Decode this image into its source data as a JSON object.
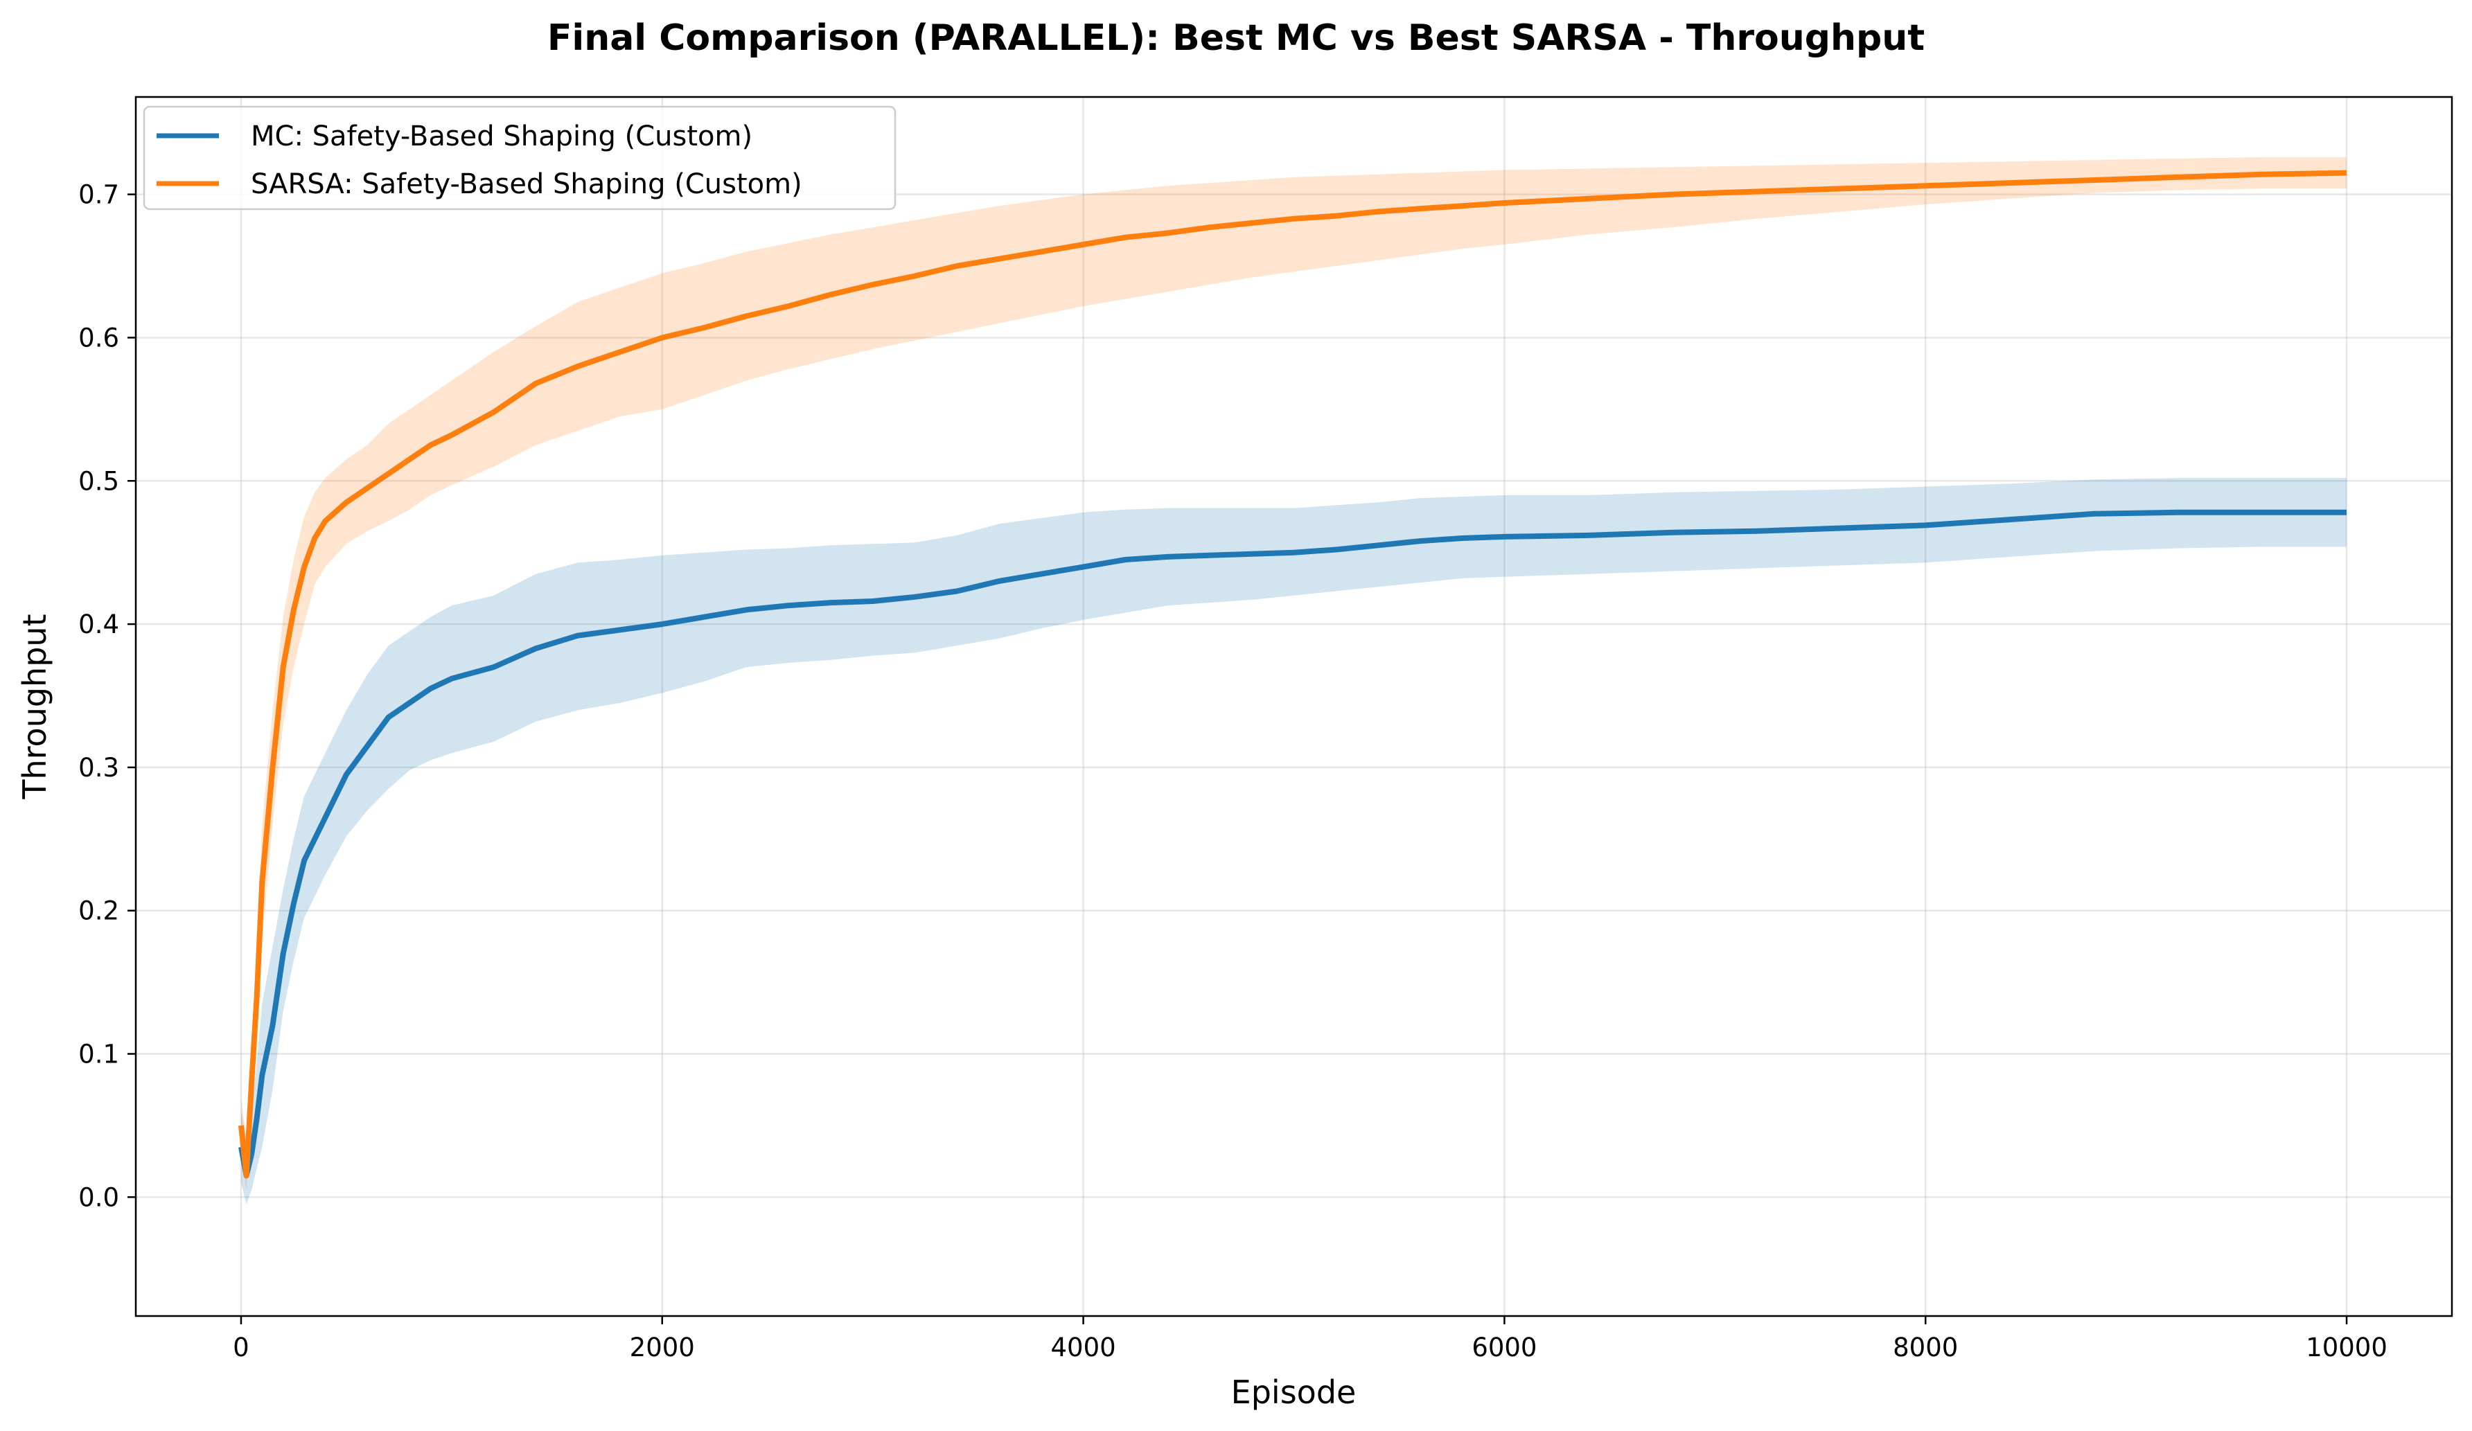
{
  "chart_data": {
    "type": "line",
    "title": "Final Comparison (PARALLEL): Best MC vs Best SARSA - Throughput",
    "xlabel": "Episode",
    "ylabel": "Throughput",
    "xlim": [
      -500,
      10500
    ],
    "ylim": [
      -0.083,
      0.768
    ],
    "x_ticks": [
      0,
      2000,
      4000,
      6000,
      8000,
      10000
    ],
    "y_ticks": [
      0.0,
      0.1,
      0.2,
      0.3,
      0.4,
      0.5,
      0.6,
      0.7
    ],
    "x_tick_labels": [
      "0",
      "2000",
      "4000",
      "6000",
      "8000",
      "10000"
    ],
    "y_tick_labels": [
      "0.0",
      "0.1",
      "0.2",
      "0.3",
      "0.4",
      "0.5",
      "0.6",
      "0.7"
    ],
    "grid": true,
    "legend_position": "top-left",
    "series": [
      {
        "name": "MC: Safety-Based Shaping (Custom)",
        "color": "#1f77b4",
        "x": [
          0,
          25,
          50,
          75,
          100,
          150,
          200,
          250,
          300,
          400,
          500,
          600,
          700,
          800,
          900,
          1000,
          1200,
          1400,
          1600,
          1800,
          2000,
          2200,
          2400,
          2600,
          2800,
          3000,
          3200,
          3400,
          3600,
          3800,
          4000,
          4200,
          4400,
          4600,
          4800,
          5000,
          5200,
          5400,
          5600,
          5800,
          6000,
          6400,
          6800,
          7200,
          7600,
          8000,
          8400,
          8800,
          9200,
          9600,
          10000
        ],
        "values": [
          0.035,
          0.015,
          0.03,
          0.055,
          0.085,
          0.12,
          0.17,
          0.205,
          0.235,
          0.265,
          0.295,
          0.315,
          0.335,
          0.345,
          0.355,
          0.362,
          0.37,
          0.383,
          0.392,
          0.396,
          0.4,
          0.405,
          0.41,
          0.413,
          0.415,
          0.416,
          0.419,
          0.423,
          0.43,
          0.435,
          0.44,
          0.445,
          0.447,
          0.448,
          0.449,
          0.45,
          0.452,
          0.455,
          0.458,
          0.46,
          0.461,
          0.462,
          0.464,
          0.465,
          0.467,
          0.469,
          0.473,
          0.477,
          0.478,
          0.478,
          0.478
        ],
        "lower": [
          0.01,
          -0.005,
          0.005,
          0.02,
          0.035,
          0.075,
          0.13,
          0.165,
          0.195,
          0.225,
          0.252,
          0.27,
          0.285,
          0.298,
          0.305,
          0.31,
          0.318,
          0.332,
          0.34,
          0.345,
          0.352,
          0.36,
          0.37,
          0.373,
          0.375,
          0.378,
          0.38,
          0.385,
          0.39,
          0.397,
          0.403,
          0.408,
          0.413,
          0.415,
          0.417,
          0.42,
          0.423,
          0.426,
          0.429,
          0.432,
          0.433,
          0.435,
          0.437,
          0.439,
          0.441,
          0.443,
          0.447,
          0.451,
          0.453,
          0.454,
          0.454
        ],
        "upper": [
          0.06,
          0.04,
          0.06,
          0.095,
          0.135,
          0.175,
          0.215,
          0.25,
          0.28,
          0.31,
          0.34,
          0.365,
          0.385,
          0.395,
          0.405,
          0.413,
          0.42,
          0.435,
          0.443,
          0.445,
          0.448,
          0.45,
          0.452,
          0.453,
          0.455,
          0.456,
          0.457,
          0.462,
          0.47,
          0.474,
          0.478,
          0.48,
          0.481,
          0.481,
          0.481,
          0.481,
          0.483,
          0.485,
          0.488,
          0.489,
          0.49,
          0.49,
          0.492,
          0.493,
          0.494,
          0.496,
          0.498,
          0.501,
          0.502,
          0.502,
          0.502
        ]
      },
      {
        "name": "SARSA: Safety-Based Shaping (Custom)",
        "color": "#ff7f0e",
        "x": [
          0,
          25,
          50,
          75,
          100,
          150,
          200,
          250,
          300,
          350,
          400,
          500,
          600,
          700,
          800,
          900,
          1000,
          1200,
          1400,
          1600,
          1800,
          2000,
          2200,
          2400,
          2600,
          2800,
          3000,
          3200,
          3400,
          3600,
          3800,
          4000,
          4200,
          4400,
          4600,
          4800,
          5000,
          5200,
          5400,
          5600,
          5800,
          6000,
          6400,
          6800,
          7200,
          7600,
          8000,
          8400,
          8800,
          9200,
          9600,
          10000
        ],
        "values": [
          0.05,
          0.015,
          0.08,
          0.14,
          0.22,
          0.3,
          0.37,
          0.41,
          0.44,
          0.46,
          0.472,
          0.485,
          0.495,
          0.505,
          0.515,
          0.525,
          0.532,
          0.548,
          0.568,
          0.58,
          0.59,
          0.6,
          0.607,
          0.615,
          0.622,
          0.63,
          0.637,
          0.643,
          0.65,
          0.655,
          0.66,
          0.665,
          0.67,
          0.673,
          0.677,
          0.68,
          0.683,
          0.685,
          0.688,
          0.69,
          0.692,
          0.694,
          0.697,
          0.7,
          0.702,
          0.704,
          0.706,
          0.708,
          0.71,
          0.712,
          0.714,
          0.715
        ],
        "lower": [
          0.03,
          0.005,
          0.055,
          0.11,
          0.18,
          0.26,
          0.33,
          0.37,
          0.4,
          0.428,
          0.44,
          0.456,
          0.465,
          0.472,
          0.48,
          0.49,
          0.497,
          0.51,
          0.525,
          0.535,
          0.545,
          0.55,
          0.56,
          0.57,
          0.578,
          0.585,
          0.592,
          0.598,
          0.604,
          0.61,
          0.616,
          0.622,
          0.627,
          0.632,
          0.637,
          0.642,
          0.646,
          0.65,
          0.654,
          0.658,
          0.662,
          0.665,
          0.672,
          0.677,
          0.683,
          0.688,
          0.693,
          0.697,
          0.701,
          0.703,
          0.704,
          0.704
        ],
        "upper": [
          0.07,
          0.04,
          0.105,
          0.17,
          0.26,
          0.34,
          0.405,
          0.445,
          0.475,
          0.492,
          0.502,
          0.515,
          0.525,
          0.54,
          0.55,
          0.56,
          0.57,
          0.59,
          0.608,
          0.625,
          0.635,
          0.645,
          0.652,
          0.66,
          0.666,
          0.672,
          0.677,
          0.682,
          0.687,
          0.692,
          0.696,
          0.7,
          0.703,
          0.706,
          0.708,
          0.71,
          0.712,
          0.713,
          0.714,
          0.715,
          0.716,
          0.717,
          0.718,
          0.719,
          0.72,
          0.721,
          0.722,
          0.723,
          0.724,
          0.725,
          0.726,
          0.726
        ]
      }
    ]
  }
}
